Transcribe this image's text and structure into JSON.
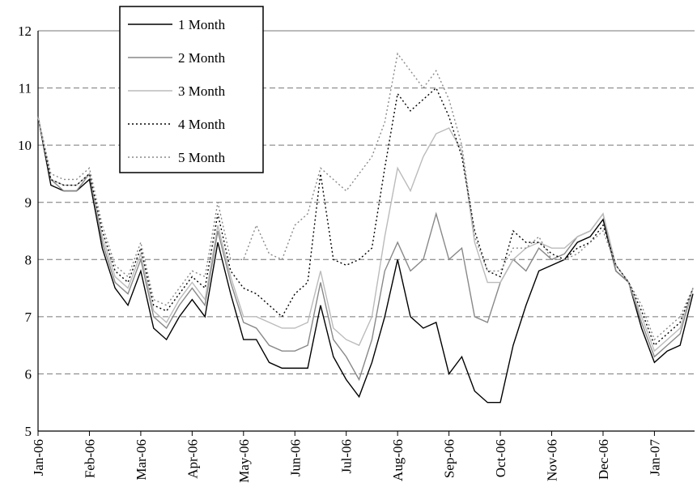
{
  "chart_data": {
    "type": "line",
    "categories": [
      "Jan-06",
      null,
      null,
      null,
      "Feb-06",
      null,
      null,
      null,
      "Mar-06",
      null,
      null,
      null,
      "Apr-06",
      null,
      null,
      null,
      "May-06",
      null,
      null,
      null,
      "Jun-06",
      null,
      null,
      null,
      "Jul-06",
      null,
      null,
      null,
      "Aug-06",
      null,
      null,
      null,
      "Sep-06",
      null,
      null,
      null,
      "Oct-06",
      null,
      null,
      null,
      "Nov-06",
      null,
      null,
      null,
      "Dec-06",
      null,
      null,
      null,
      "Jan-07",
      null,
      null,
      null
    ],
    "ylim": [
      5,
      12
    ],
    "yticks": [
      5,
      6,
      7,
      8,
      9,
      10,
      11,
      12
    ],
    "grid": true,
    "legend": "upper-left",
    "series": [
      {
        "name": "1 Month",
        "color": "#000000",
        "dash": "solid",
        "values": [
          10.5,
          9.3,
          9.2,
          9.2,
          9.4,
          8.2,
          7.5,
          7.2,
          7.8,
          6.8,
          6.6,
          7.0,
          7.3,
          7.0,
          8.3,
          7.4,
          6.6,
          6.6,
          6.2,
          6.1,
          6.1,
          6.1,
          7.2,
          6.3,
          5.9,
          5.6,
          6.2,
          7.0,
          8.0,
          7.0,
          6.8,
          6.9,
          6.0,
          6.3,
          5.7,
          5.5,
          5.5,
          6.5,
          7.2,
          7.8,
          7.9,
          8.0,
          8.3,
          8.4,
          8.7,
          7.8,
          7.6,
          6.8,
          6.2,
          6.4,
          6.5,
          7.4
        ]
      },
      {
        "name": "2 Month",
        "color": "#888888",
        "dash": "solid",
        "values": [
          10.5,
          9.4,
          9.2,
          9.2,
          9.5,
          8.3,
          7.6,
          7.4,
          8.0,
          7.0,
          6.8,
          7.2,
          7.5,
          7.2,
          8.5,
          7.6,
          6.9,
          6.8,
          6.5,
          6.4,
          6.4,
          6.5,
          7.6,
          6.6,
          6.3,
          5.9,
          6.6,
          7.8,
          8.3,
          7.8,
          8.0,
          8.8,
          8.0,
          8.2,
          7.0,
          6.9,
          7.6,
          8.0,
          7.8,
          8.2,
          8.0,
          8.1,
          8.4,
          8.5,
          8.8,
          7.8,
          7.6,
          6.9,
          6.3,
          6.5,
          6.7,
          7.5
        ]
      },
      {
        "name": "3 Month",
        "color": "#bbbbbb",
        "dash": "solid",
        "values": [
          10.5,
          9.4,
          9.3,
          9.3,
          9.5,
          8.4,
          7.7,
          7.5,
          8.1,
          7.1,
          6.9,
          7.3,
          7.6,
          7.3,
          8.6,
          7.7,
          7.0,
          7.0,
          6.9,
          6.8,
          6.8,
          6.9,
          7.8,
          6.8,
          6.6,
          6.5,
          7.0,
          8.4,
          9.6,
          9.2,
          9.8,
          10.2,
          10.3,
          9.9,
          8.3,
          7.6,
          7.6,
          8.0,
          8.2,
          8.3,
          8.2,
          8.2,
          8.4,
          8.5,
          8.8,
          7.9,
          7.6,
          7.0,
          6.4,
          6.6,
          6.8,
          7.5
        ]
      },
      {
        "name": "4 Month",
        "color": "#000000",
        "dash": "dotted",
        "values": [
          10.5,
          9.4,
          9.3,
          9.3,
          9.5,
          8.5,
          7.8,
          7.6,
          8.2,
          7.2,
          7.1,
          7.4,
          7.7,
          7.5,
          8.8,
          7.8,
          7.5,
          7.4,
          7.2,
          7.0,
          7.4,
          7.6,
          9.5,
          8.0,
          7.9,
          8.0,
          8.2,
          9.6,
          10.9,
          10.6,
          10.8,
          11.0,
          10.5,
          9.8,
          8.5,
          7.8,
          7.7,
          8.5,
          8.3,
          8.3,
          8.1,
          8.0,
          8.2,
          8.3,
          8.6,
          7.9,
          7.6,
          7.1,
          6.5,
          6.7,
          6.9,
          7.5
        ]
      },
      {
        "name": "5 Month",
        "color": "#888888",
        "dash": "dotted",
        "values": [
          10.5,
          9.5,
          9.4,
          9.4,
          9.6,
          8.6,
          7.9,
          7.7,
          8.3,
          7.3,
          7.2,
          7.5,
          7.8,
          7.7,
          9.0,
          8.0,
          8.0,
          8.6,
          8.1,
          8.0,
          8.6,
          8.8,
          9.6,
          9.4,
          9.2,
          9.5,
          9.8,
          10.4,
          11.6,
          11.3,
          11.0,
          11.3,
          10.8,
          10.0,
          8.4,
          7.8,
          7.8,
          8.2,
          8.2,
          8.4,
          8.0,
          8.0,
          8.1,
          8.3,
          8.5,
          7.9,
          7.6,
          7.2,
          6.6,
          6.8,
          7.0,
          7.5
        ]
      }
    ]
  }
}
